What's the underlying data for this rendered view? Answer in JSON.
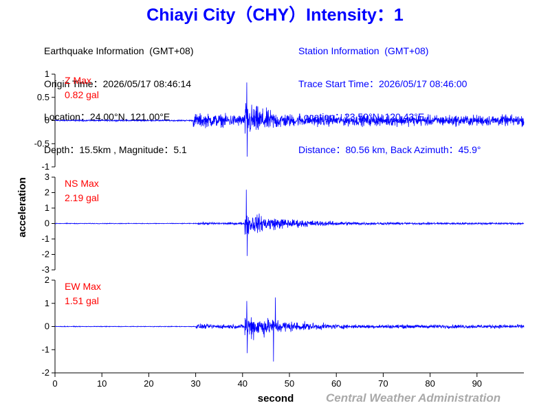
{
  "title": "Chiayi City（CHY）Intensity：1",
  "earthquake": {
    "heading": "Earthquake Information  (GMT+08)",
    "origin_time": "Origin Time：2026/05/17 08:46:14",
    "location": "Location：24.00°N, 121.00°E",
    "depth_mag": "Depth：15.5km , Magnitude：5.1"
  },
  "station": {
    "heading": "Station Information  (GMT+08)",
    "trace_start": "Trace Start Time：2026/05/17 08:46:00",
    "location": "Location：23.50°N, 120.43°E",
    "distance": "Distance：80.56 km, Back Azimuth：45.9°"
  },
  "credit": "Central Weather Administration",
  "colors": {
    "trace": "#0000ff",
    "label": "#ff0000",
    "title": "#0000ff"
  },
  "chart_data": {
    "type": "line",
    "xlabel": "second",
    "ylabel": "acceleration",
    "xlim": [
      0,
      100
    ],
    "x_ticks": [
      0,
      10,
      20,
      30,
      40,
      50,
      60,
      70,
      80,
      90
    ],
    "series": [
      {
        "name": "Z Max",
        "max_label": "0.82 gal",
        "ylim": [
          -1,
          1
        ],
        "y_ticks": [
          1,
          0.5,
          0,
          -0.5,
          -1
        ],
        "y_tick_labels": [
          "1",
          "0.5",
          "0",
          "-0.5",
          "-1"
        ],
        "noise": 0.02,
        "p_onset": 29.5,
        "p_amp": 0.22,
        "s_onset": 40.5,
        "s_amp": 0.5,
        "tail": 0.06,
        "peaks": [
          [
            40.9,
            0.82
          ],
          [
            41.0,
            -0.78
          ]
        ]
      },
      {
        "name": "NS Max",
        "max_label": "2.19 gal",
        "ylim": [
          -3,
          3
        ],
        "y_ticks": [
          3,
          2,
          1,
          0,
          -1,
          -2,
          -3
        ],
        "y_tick_labels": [
          "3",
          "2",
          "1",
          "0",
          "-1",
          "-2",
          "-3"
        ],
        "noise": 0.03,
        "p_onset": 30.5,
        "p_amp": 0.12,
        "s_onset": 40.5,
        "s_amp": 0.9,
        "tail": 0.18,
        "peaks": [
          [
            40.8,
            2.19
          ],
          [
            41.0,
            -2.1
          ]
        ]
      },
      {
        "name": "EW Max",
        "max_label": "1.51 gal",
        "ylim": [
          -2,
          2
        ],
        "y_ticks": [
          2,
          1,
          0,
          -1,
          -2
        ],
        "y_tick_labels": [
          "2",
          "1",
          "0",
          "-1",
          "-2"
        ],
        "noise": 0.02,
        "p_onset": 30.0,
        "p_amp": 0.15,
        "s_onset": 40.5,
        "s_amp": 0.75,
        "tail": 0.12,
        "peaks": [
          [
            40.9,
            1.1
          ],
          [
            41.0,
            -1.15
          ],
          [
            47.0,
            1.25
          ],
          [
            46.6,
            -1.51
          ]
        ]
      }
    ]
  }
}
